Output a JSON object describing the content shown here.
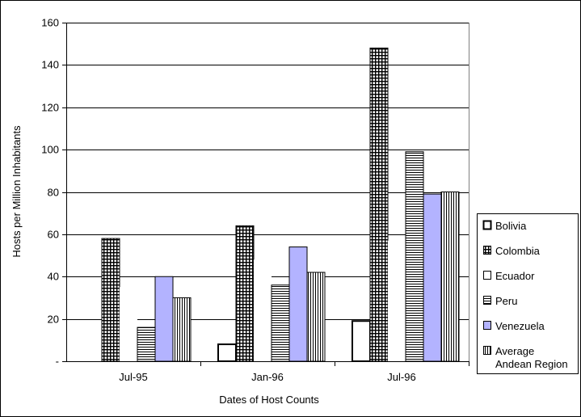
{
  "chart_data": {
    "type": "bar",
    "xlabel": "Dates of Host Counts",
    "ylabel": "Hosts per Million Inhabitants",
    "ylim": [
      0,
      160
    ],
    "y_ticks": [
      {
        "value": 0,
        "label": "-"
      },
      {
        "value": 20,
        "label": "20"
      },
      {
        "value": 40,
        "label": "40"
      },
      {
        "value": 60,
        "label": "60"
      },
      {
        "value": 80,
        "label": "80"
      },
      {
        "value": 100,
        "label": "100"
      },
      {
        "value": 120,
        "label": "120"
      },
      {
        "value": 140,
        "label": "140"
      },
      {
        "value": 160,
        "label": "160"
      }
    ],
    "grid": true,
    "legend_position": "right",
    "categories": [
      "Jul-95",
      "Jan-96",
      "Jul-96"
    ],
    "series": [
      {
        "name": "Bolivia",
        "values": [
          0,
          8,
          19
        ],
        "pattern": "hollow-bold"
      },
      {
        "name": "Colombia",
        "values": [
          58,
          64,
          148
        ],
        "pattern": "dense-grid"
      },
      {
        "name": "Ecuador",
        "values": [
          35,
          48,
          57
        ],
        "pattern": "white"
      },
      {
        "name": "Peru",
        "values": [
          16,
          36,
          99
        ],
        "pattern": "horizontal-lines"
      },
      {
        "name": "Venezuela",
        "values": [
          40,
          54,
          79
        ],
        "pattern": "solid",
        "color": "#b3b3ff"
      },
      {
        "name": "Average Andean Region",
        "legend_lines": [
          "Average",
          "Andean Region"
        ],
        "values": [
          30,
          42,
          80
        ],
        "pattern": "vertical-lines"
      }
    ]
  }
}
